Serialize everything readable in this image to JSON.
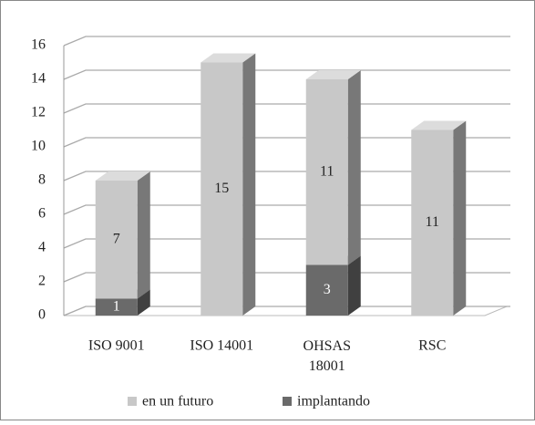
{
  "chart_data": {
    "type": "bar3d_stacked",
    "categories": [
      "ISO 9001",
      "ISO 14001",
      "OHSAS 18001",
      "RSC"
    ],
    "series": [
      {
        "name": "en un futuro",
        "color": "#c8c8c8",
        "values": [
          7,
          15,
          11,
          11
        ]
      },
      {
        "name": "implantando",
        "color": "#6a6a6a",
        "values": [
          1,
          null,
          3,
          null
        ]
      }
    ],
    "ylim": [
      0,
      16
    ],
    "yticks": [
      0,
      2,
      4,
      6,
      8,
      10,
      12,
      14,
      16
    ],
    "grid": true,
    "legend": "bottom"
  }
}
